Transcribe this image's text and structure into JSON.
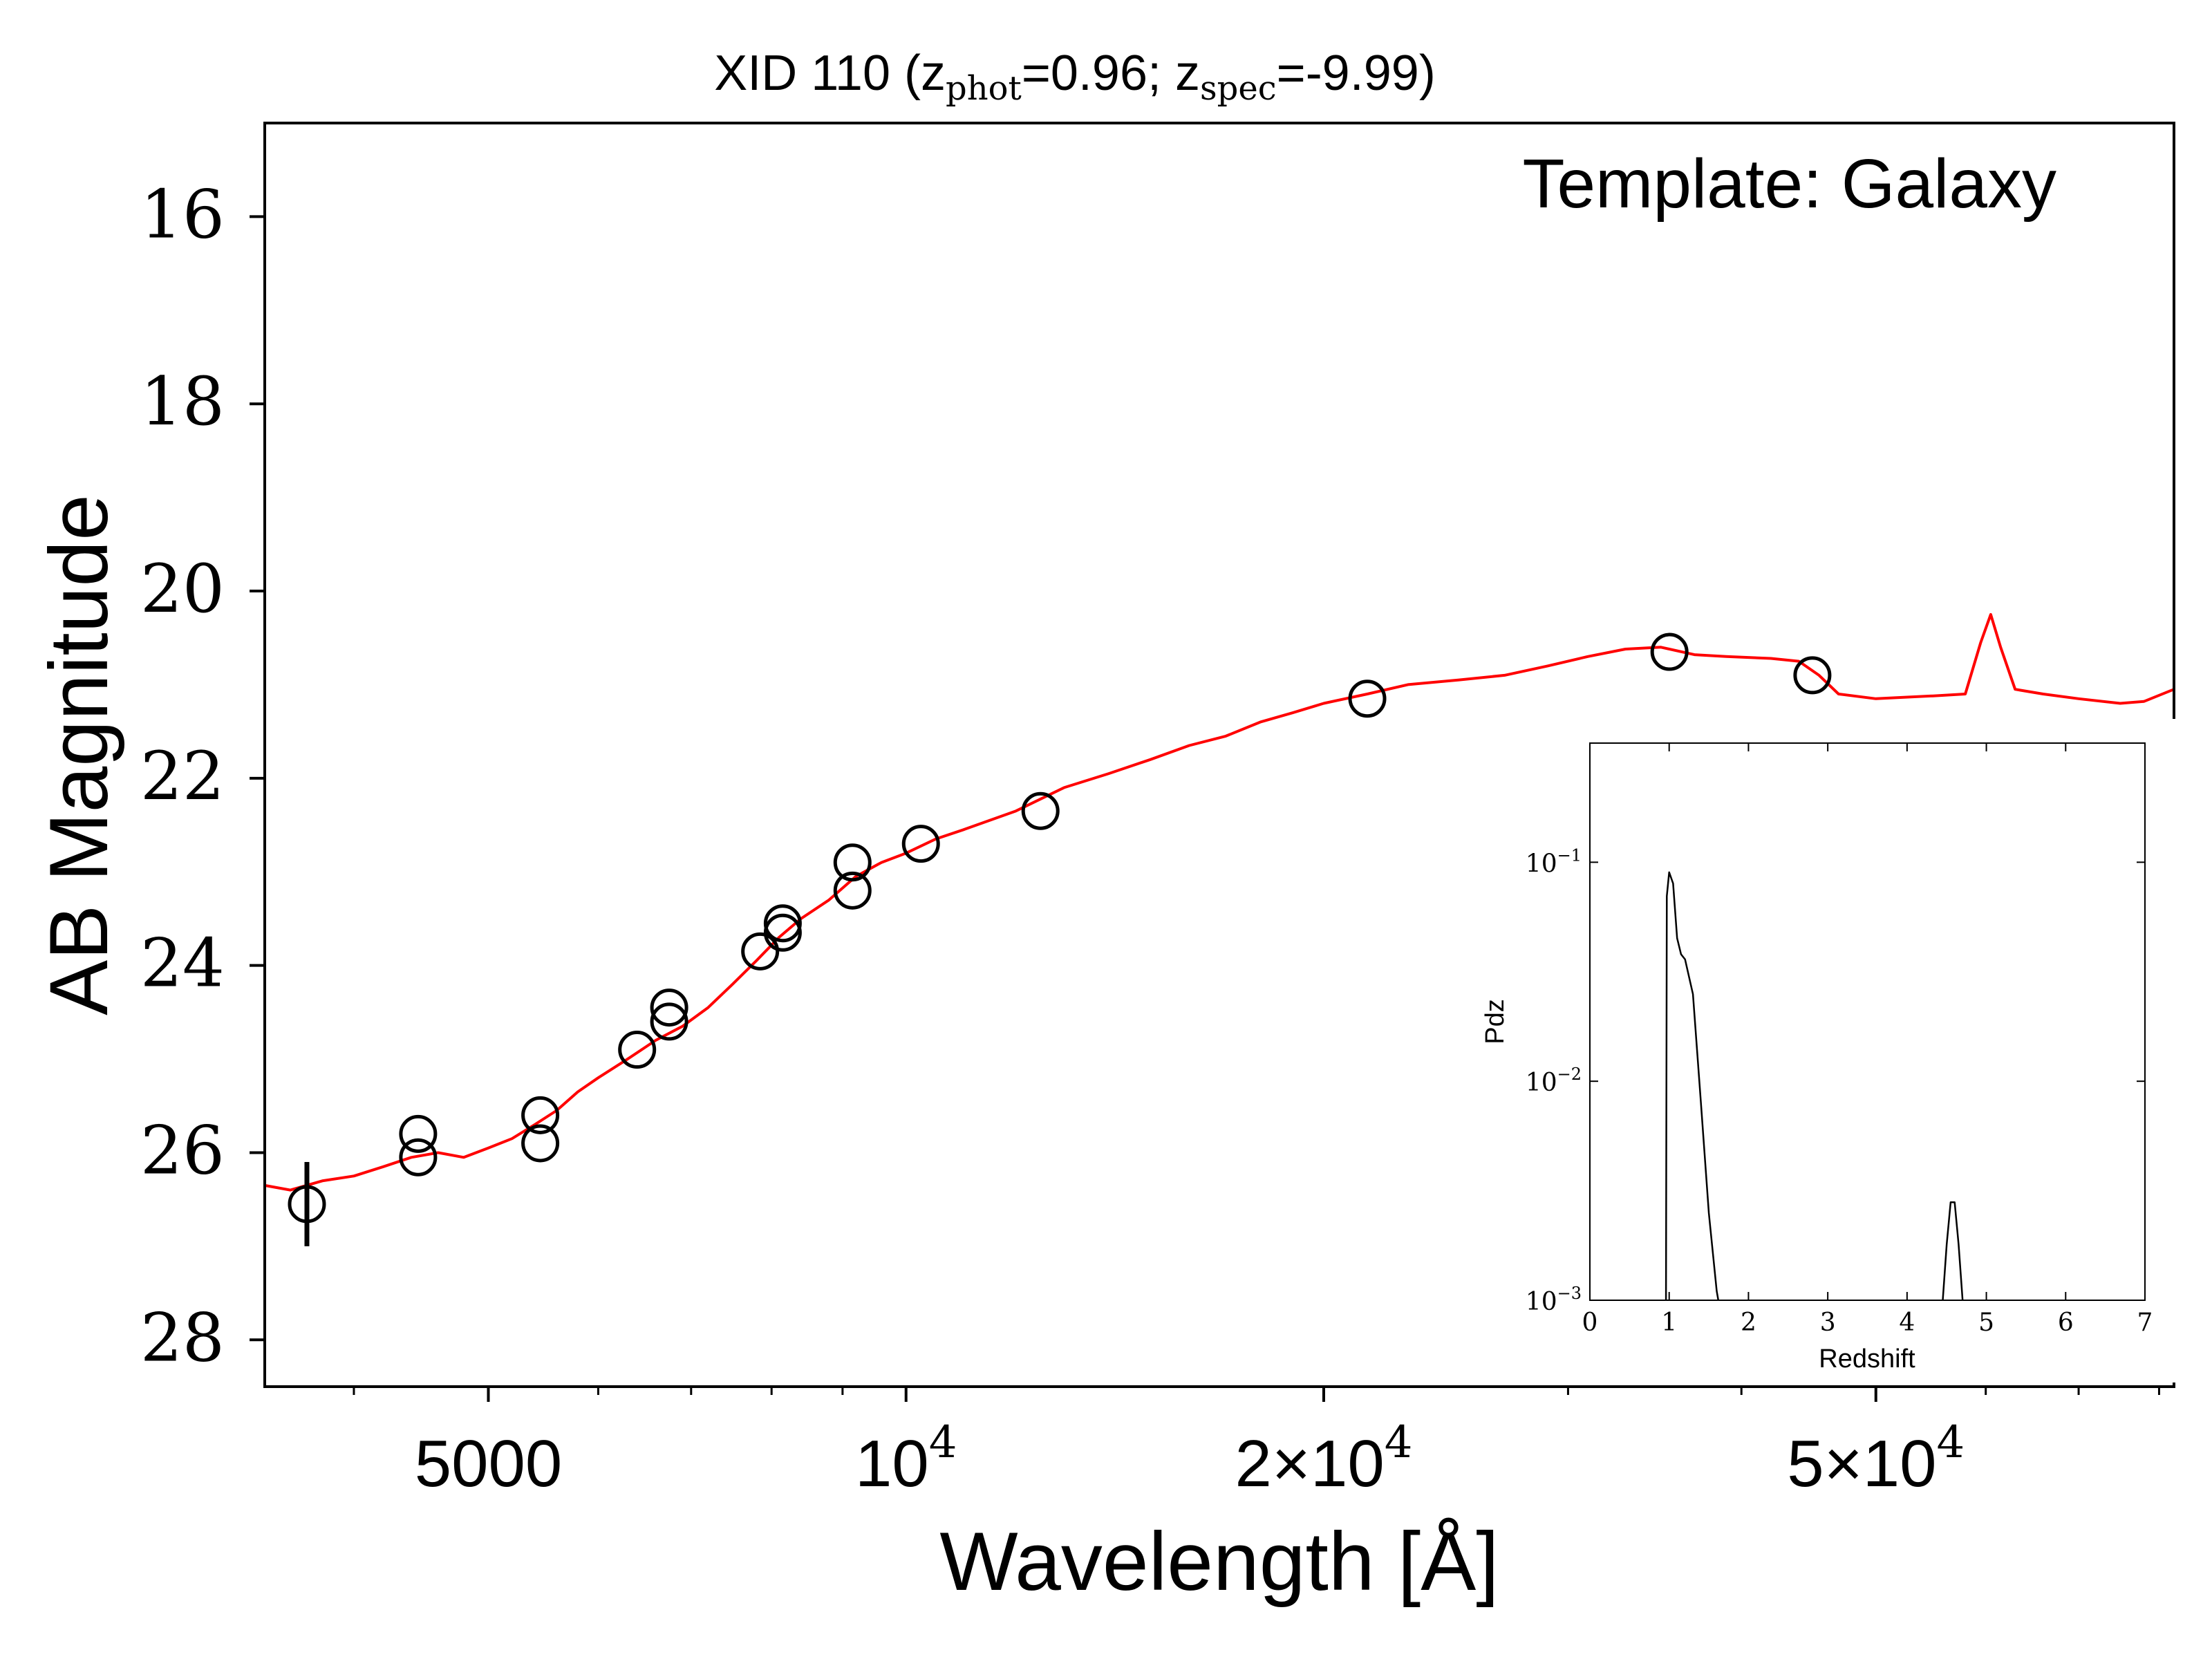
{
  "chart_data": [
    {
      "type": "scatter",
      "title": {
        "prefix": "XID 110 (z",
        "sub1": "phot",
        "mid": "=0.96; z",
        "sub2": "spec",
        "suffix": "=-9.99)"
      },
      "annotation": "Template: Galaxy",
      "xlabel": "Wavelength [Å]",
      "ylabel": "AB Magnitude",
      "xscale": "log",
      "xlim": [
        3450,
        82000
      ],
      "ylim": [
        28.5,
        15.0
      ],
      "y_inverted": true,
      "yticks": [
        16,
        18,
        20,
        22,
        24,
        26,
        28
      ],
      "xticks": [
        {
          "value": 5000,
          "base": "5000",
          "exp": ""
        },
        {
          "value": 10000,
          "base": "10",
          "exp": "4"
        },
        {
          "value": 20000,
          "base": "2×10",
          "exp": "4"
        },
        {
          "value": 50000,
          "base": "5×10",
          "exp": "4"
        }
      ],
      "minor_xticks": [
        4000,
        6000,
        7000,
        8000,
        9000,
        30000,
        40000,
        60000,
        70000,
        80000
      ],
      "photometry": [
        {
          "x": 3700,
          "y": 26.55,
          "yerr": 0.45
        },
        {
          "x": 4450,
          "y": 25.8
        },
        {
          "x": 4450,
          "y": 26.05
        },
        {
          "x": 5450,
          "y": 25.6
        },
        {
          "x": 5450,
          "y": 25.9
        },
        {
          "x": 6400,
          "y": 24.9
        },
        {
          "x": 6750,
          "y": 24.45
        },
        {
          "x": 6750,
          "y": 24.6
        },
        {
          "x": 7850,
          "y": 23.85
        },
        {
          "x": 8150,
          "y": 23.55
        },
        {
          "x": 8150,
          "y": 23.65
        },
        {
          "x": 9150,
          "y": 22.9
        },
        {
          "x": 9150,
          "y": 23.2
        },
        {
          "x": 10250,
          "y": 22.7
        },
        {
          "x": 12500,
          "y": 22.35
        },
        {
          "x": 21500,
          "y": 21.15
        },
        {
          "x": 35500,
          "y": 20.65
        },
        {
          "x": 45000,
          "y": 20.9
        }
      ],
      "template_sed": {
        "color": "#ff0000",
        "x": [
          3450,
          3600,
          3800,
          4000,
          4200,
          4400,
          4600,
          4800,
          5000,
          5200,
          5400,
          5600,
          5800,
          6000,
          6300,
          6600,
          6900,
          7200,
          7500,
          7800,
          8100,
          8400,
          8800,
          9200,
          9600,
          10000,
          10500,
          11000,
          12000,
          13000,
          14000,
          15000,
          16000,
          17000,
          18000,
          19000,
          20000,
          21500,
          23000,
          25000,
          27000,
          29000,
          31000,
          33000,
          35000,
          37000,
          39000,
          42000,
          44000,
          45500,
          47000,
          50000,
          55000,
          58000,
          59500,
          60500,
          61500,
          63000,
          66000,
          70000,
          75000,
          78000,
          82000
        ],
        "y": [
          26.35,
          26.4,
          26.3,
          26.25,
          26.15,
          26.05,
          26.0,
          26.05,
          25.95,
          25.85,
          25.7,
          25.55,
          25.35,
          25.2,
          25.0,
          24.8,
          24.65,
          24.45,
          24.2,
          23.95,
          23.7,
          23.5,
          23.3,
          23.05,
          22.9,
          22.8,
          22.65,
          22.55,
          22.35,
          22.1,
          21.95,
          21.8,
          21.65,
          21.55,
          21.4,
          21.3,
          21.2,
          21.1,
          21.0,
          20.95,
          20.9,
          20.8,
          20.7,
          20.62,
          20.6,
          20.68,
          20.7,
          20.72,
          20.75,
          20.9,
          21.1,
          21.15,
          21.12,
          21.1,
          20.55,
          20.25,
          20.6,
          21.05,
          21.1,
          21.15,
          21.2,
          21.18,
          21.05
        ]
      }
    },
    {
      "type": "line",
      "xlabel": "Redshift",
      "ylabel": "Pdz",
      "yscale": "log",
      "xlim": [
        0,
        7
      ],
      "ylim": [
        0.001,
        0.35
      ],
      "xticks": [
        "0",
        "1",
        "2",
        "3",
        "4",
        "5",
        "6",
        "7"
      ],
      "yticks": [
        {
          "value": 0.1,
          "base": "10",
          "exp": "−1"
        },
        {
          "value": 0.01,
          "base": "10",
          "exp": "−2"
        },
        {
          "value": 0.001,
          "base": "10",
          "exp": "−3"
        }
      ],
      "series": [
        {
          "x": [
            0.96,
            0.97,
            1.0,
            1.05,
            1.1,
            1.15,
            1.2,
            1.3,
            1.4,
            1.5,
            1.6,
            1.62
          ],
          "y": [
            0.001,
            0.07,
            0.09,
            0.08,
            0.045,
            0.038,
            0.036,
            0.025,
            0.008,
            0.0025,
            0.0011,
            0.001
          ]
        },
        {
          "x": [
            4.45,
            4.5,
            4.55,
            4.6,
            4.65,
            4.7
          ],
          "y": [
            0.001,
            0.0018,
            0.0028,
            0.0028,
            0.0018,
            0.001
          ]
        }
      ]
    }
  ]
}
